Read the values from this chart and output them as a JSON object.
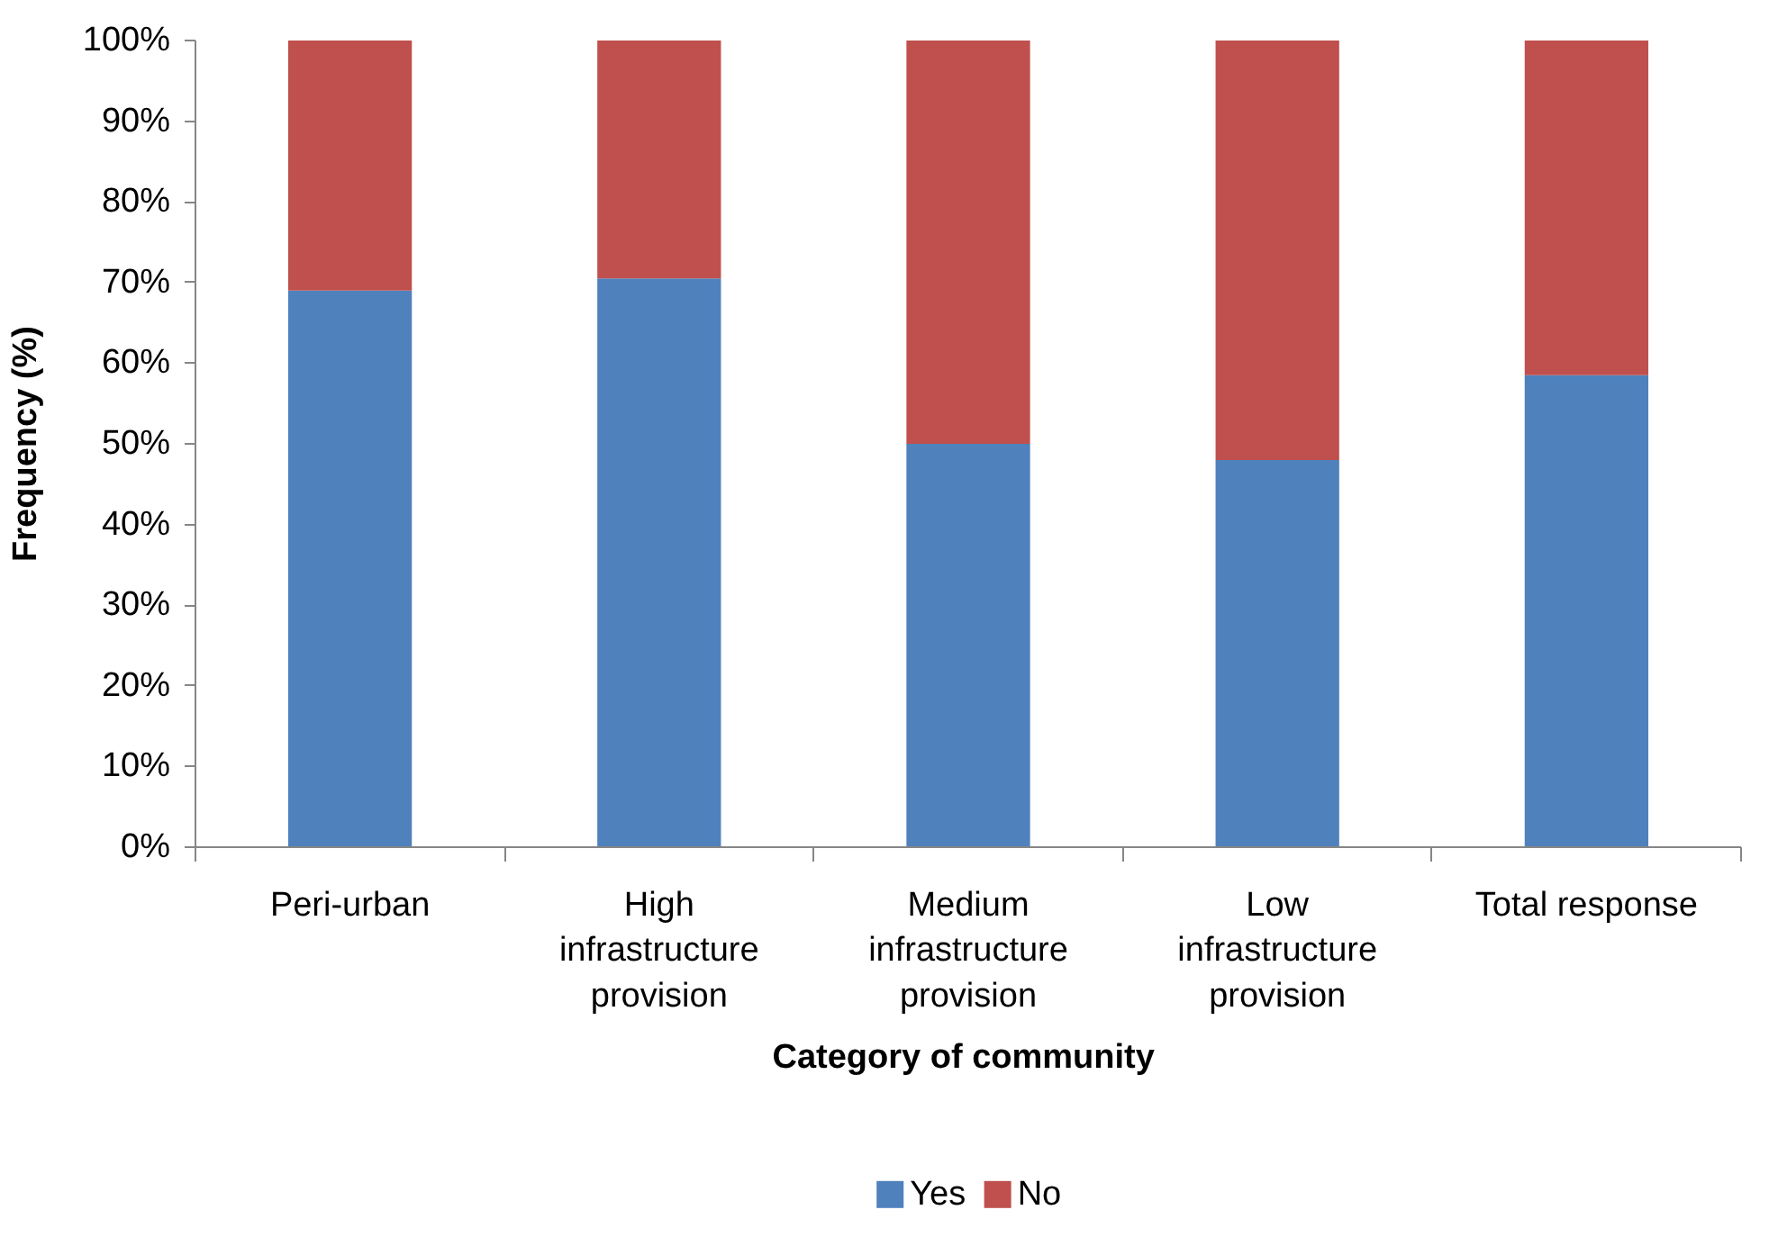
{
  "chart_data": {
    "type": "bar",
    "stacked": true,
    "xlabel": "Category  of community",
    "ylabel": "Frequency (%)",
    "categories": [
      "Peri-urban",
      "High infrastructure provision",
      "Medium infrastructure provision",
      "Low infrastructure provision",
      "Total response"
    ],
    "series": [
      {
        "name": "Yes",
        "color": "#4f81bd",
        "values": [
          69,
          70.5,
          50,
          48,
          58.5
        ]
      },
      {
        "name": "No",
        "color": "#c0504d",
        "values": [
          31,
          29.5,
          50,
          52,
          41.5
        ]
      }
    ],
    "ylim": [
      0,
      100
    ],
    "yticks": [
      {
        "value": 0,
        "label": "0%"
      },
      {
        "value": 10,
        "label": "10%"
      },
      {
        "value": 20,
        "label": "20%"
      },
      {
        "value": 30,
        "label": "30%"
      },
      {
        "value": 40,
        "label": "40%"
      },
      {
        "value": 50,
        "label": "50%"
      },
      {
        "value": 60,
        "label": "60%"
      },
      {
        "value": 70,
        "label": "70%"
      },
      {
        "value": 80,
        "label": "80%"
      },
      {
        "value": 90,
        "label": "90%"
      },
      {
        "value": 100,
        "label": "100%"
      }
    ],
    "legend": "bottom",
    "grid": false
  }
}
